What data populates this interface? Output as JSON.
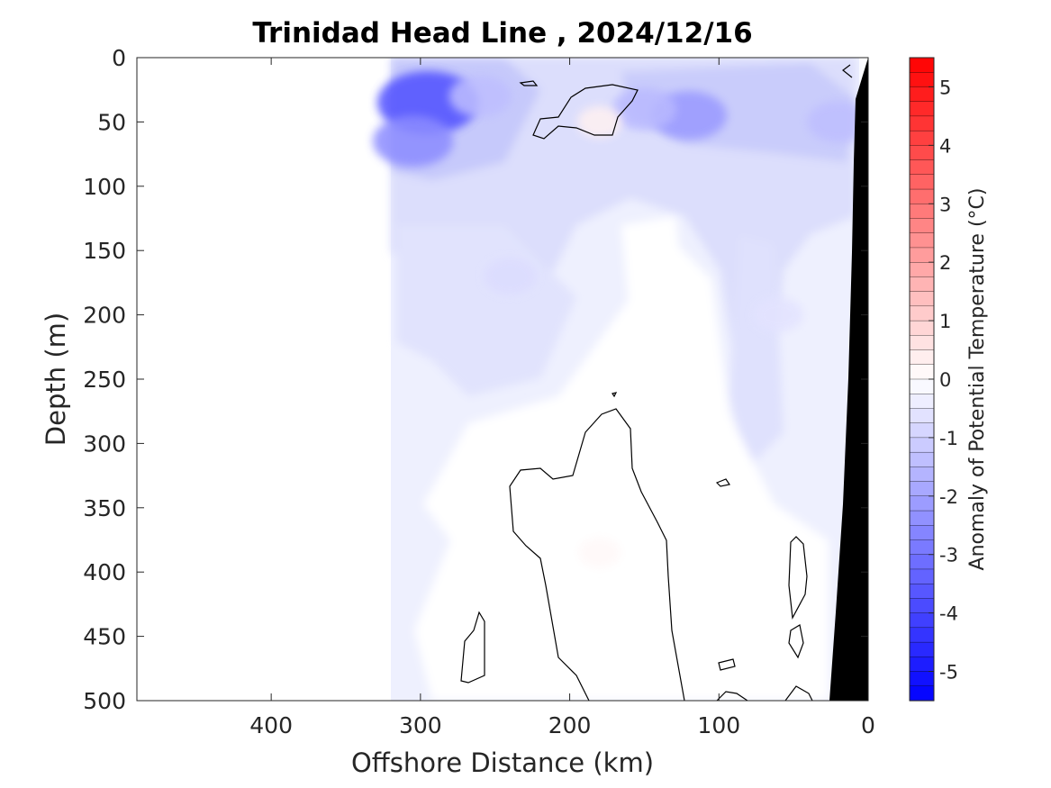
{
  "chart_data": {
    "type": "heatmap",
    "title": "Trinidad Head Line , 2024/12/16",
    "xlabel": "Offshore Distance (km)",
    "ylabel": "Depth (m)",
    "xlim": [
      490,
      0
    ],
    "ylim": [
      500,
      0
    ],
    "x_reversed": true,
    "y_reversed": true,
    "x_ticks": [
      "400",
      "300",
      "200",
      "100",
      "0"
    ],
    "x_tick_values": [
      400,
      300,
      200,
      100,
      0
    ],
    "y_ticks": [
      "0",
      "50",
      "100",
      "150",
      "200",
      "250",
      "300",
      "350",
      "400",
      "450",
      "500"
    ],
    "y_tick_values": [
      0,
      50,
      100,
      150,
      200,
      250,
      300,
      350,
      400,
      450,
      500
    ],
    "data_extent_km": [
      320,
      0
    ],
    "colorbar": {
      "label": "Anomaly of Potential Temperature (°C)",
      "range": [
        -5.5,
        5.5
      ],
      "step": 0.25,
      "ticks": [
        "5",
        "4",
        "3",
        "2",
        "1",
        "0",
        "-1",
        "-2",
        "-3",
        "-4",
        "-5"
      ],
      "tick_values": [
        5,
        4,
        3,
        2,
        1,
        0,
        -1,
        -2,
        -3,
        -4,
        -5
      ],
      "color_negative": "#0000ff",
      "color_zero": "#ffffff",
      "color_positive": "#ff0000"
    },
    "anomaly_regions": [
      {
        "x_km": 295,
        "depth_m": 35,
        "value": -3.8
      },
      {
        "x_km": 305,
        "depth_m": 65,
        "value": -2.5
      },
      {
        "x_km": 120,
        "depth_m": 45,
        "value": -2.2
      },
      {
        "x_km": 150,
        "depth_m": 40,
        "value": -1.5
      },
      {
        "x_km": 20,
        "depth_m": 50,
        "value": -1.4
      },
      {
        "x_km": 260,
        "depth_m": 30,
        "value": -1.4
      },
      {
        "x_km": 240,
        "depth_m": 170,
        "value": -0.75
      },
      {
        "x_km": 60,
        "depth_m": 200,
        "value": -0.6
      },
      {
        "x_km": 180,
        "depth_m": 50,
        "value": 0.3
      },
      {
        "x_km": 180,
        "depth_m": 385,
        "value": 0.15
      }
    ],
    "zero_contour_lines": 11,
    "bathymetry_fill": "#000000"
  }
}
